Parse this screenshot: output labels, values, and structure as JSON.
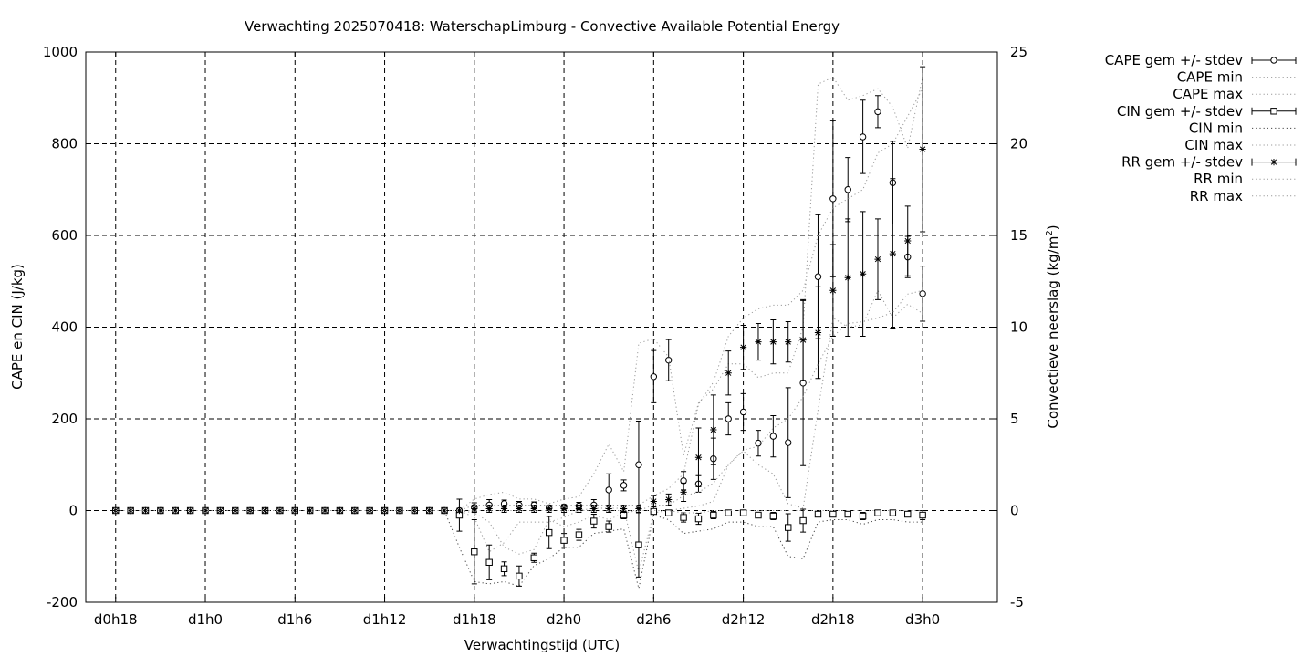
{
  "chart_data": {
    "type": "line",
    "title": "Verwachting 2025070418: WaterschapLimburg - Convective Available Potential Energy",
    "xlabel": "Verwachtingstijd (UTC)",
    "ylabel": "CAPE en CIN (J/kg)",
    "y2label_main": "Convectieve neerslag (kg/m",
    "y2label_sup": "2",
    "y2label_end": ")",
    "xlim": [
      -2,
      59
    ],
    "ylim": [
      -200,
      1000
    ],
    "y2lim": [
      -5,
      25
    ],
    "grid": true,
    "legend_position": "outside-right",
    "x_ticks": [
      {
        "x": 0,
        "label": "d0h18"
      },
      {
        "x": 6,
        "label": "d1h0"
      },
      {
        "x": 12,
        "label": "d1h6"
      },
      {
        "x": 18,
        "label": "d1h12"
      },
      {
        "x": 24,
        "label": "d1h18"
      },
      {
        "x": 30,
        "label": "d2h0"
      },
      {
        "x": 36,
        "label": "d2h6"
      },
      {
        "x": 42,
        "label": "d2h12"
      },
      {
        "x": 48,
        "label": "d2h18"
      },
      {
        "x": 54,
        "label": "d3h0"
      }
    ],
    "y_ticks": [
      "-200",
      "0",
      "200",
      "400",
      "600",
      "800",
      "1000"
    ],
    "y2_ticks": [
      "-5",
      "0",
      "5",
      "10",
      "15",
      "20",
      "25"
    ],
    "x": [
      0,
      1,
      2,
      3,
      4,
      5,
      6,
      7,
      8,
      9,
      10,
      11,
      12,
      13,
      14,
      15,
      16,
      17,
      18,
      19,
      20,
      21,
      22,
      23,
      24,
      25,
      26,
      27,
      28,
      29,
      30,
      31,
      32,
      33,
      34,
      35,
      36,
      37,
      38,
      39,
      40,
      41,
      42,
      43,
      44,
      45,
      46,
      47,
      48,
      49,
      50,
      51,
      52,
      53,
      54
    ],
    "series": [
      {
        "name": "CAPE gem +/- stdev",
        "kind": "errorbar",
        "marker": "circle",
        "axis": "y",
        "values": [
          0,
          0,
          0,
          0,
          0,
          0,
          0,
          0,
          0,
          0,
          0,
          0,
          0,
          0,
          0,
          0,
          0,
          0,
          0,
          0,
          0,
          0,
          0,
          0,
          7,
          12,
          15,
          12,
          12,
          6,
          8,
          10,
          12,
          45,
          55,
          100,
          292,
          328,
          65,
          58,
          113,
          200,
          215,
          147,
          162,
          148,
          278,
          510,
          680,
          700,
          815,
          870,
          715,
          553,
          473
        ],
        "err": [
          0,
          0,
          0,
          0,
          0,
          0,
          0,
          0,
          0,
          0,
          0,
          0,
          0,
          0,
          0,
          0,
          0,
          0,
          0,
          0,
          0,
          0,
          0,
          0,
          10,
          12,
          8,
          8,
          7,
          5,
          5,
          8,
          12,
          35,
          12,
          95,
          57,
          45,
          20,
          18,
          45,
          35,
          40,
          28,
          45,
          120,
          180,
          135,
          170,
          70,
          80,
          35,
          90,
          45,
          60
        ]
      },
      {
        "name": "CAPE min",
        "kind": "dotted",
        "axis": "y",
        "values": [
          0,
          0,
          0,
          0,
          0,
          0,
          0,
          0,
          0,
          0,
          0,
          0,
          0,
          0,
          0,
          0,
          0,
          0,
          0,
          0,
          0,
          0,
          0,
          0,
          -15,
          -90,
          -70,
          -25,
          -25,
          -25,
          -15,
          0,
          5,
          5,
          5,
          -135,
          -5,
          0,
          5,
          10,
          20,
          100,
          130,
          100,
          80,
          15,
          5,
          220,
          420,
          400,
          405,
          480,
          420,
          450,
          430
        ]
      },
      {
        "name": "CAPE max",
        "kind": "dotted",
        "axis": "y",
        "values": [
          0,
          0,
          0,
          0,
          0,
          0,
          0,
          0,
          0,
          0,
          0,
          0,
          0,
          0,
          0,
          0,
          0,
          0,
          0,
          0,
          0,
          0,
          0,
          0,
          25,
          35,
          40,
          25,
          25,
          15,
          25,
          30,
          80,
          145,
          85,
          365,
          375,
          335,
          120,
          235,
          265,
          320,
          320,
          290,
          300,
          300,
          400,
          930,
          945,
          895,
          905,
          920,
          880,
          790,
          945
        ]
      },
      {
        "name": "CIN gem +/- stdev",
        "kind": "errorbar",
        "marker": "square",
        "axis": "y",
        "values": [
          0,
          0,
          0,
          0,
          0,
          0,
          0,
          0,
          0,
          0,
          0,
          0,
          0,
          0,
          0,
          0,
          0,
          0,
          0,
          0,
          0,
          0,
          0,
          -10,
          -90,
          -113,
          -127,
          -143,
          -103,
          -48,
          -65,
          -53,
          -23,
          -35,
          -10,
          -75,
          -2,
          -5,
          -15,
          -18,
          -10,
          -5,
          -5,
          -10,
          -12,
          -37,
          -22,
          -8,
          -8,
          -8,
          -12,
          -5,
          -5,
          -8,
          -10
        ],
        "err": [
          0,
          0,
          0,
          0,
          0,
          0,
          0,
          0,
          0,
          0,
          0,
          0,
          0,
          0,
          0,
          0,
          0,
          0,
          0,
          0,
          0,
          0,
          0,
          35,
          70,
          38,
          15,
          22,
          10,
          35,
          15,
          12,
          15,
          12,
          8,
          70,
          5,
          5,
          10,
          12,
          8,
          5,
          5,
          6,
          8,
          30,
          25,
          5,
          5,
          5,
          8,
          4,
          4,
          5,
          10
        ]
      },
      {
        "name": "CIN min",
        "kind": "dotted",
        "axis": "y",
        "values": [
          0,
          0,
          0,
          0,
          0,
          0,
          0,
          0,
          0,
          0,
          0,
          0,
          0,
          0,
          0,
          0,
          0,
          0,
          0,
          0,
          0,
          0,
          0,
          -80,
          -155,
          -160,
          -155,
          -165,
          -120,
          -105,
          -80,
          -80,
          -50,
          -45,
          -40,
          -170,
          -10,
          -20,
          -50,
          -45,
          -40,
          -25,
          -25,
          -35,
          -35,
          -100,
          -105,
          -25,
          -20,
          -20,
          -30,
          -20,
          -20,
          -25,
          -25
        ]
      },
      {
        "name": "CIN max",
        "kind": "dotted",
        "axis": "y",
        "values": [
          0,
          0,
          0,
          0,
          0,
          0,
          0,
          0,
          0,
          0,
          0,
          0,
          0,
          0,
          0,
          0,
          0,
          0,
          0,
          0,
          0,
          0,
          0,
          0,
          -5,
          -25,
          -80,
          -95,
          -85,
          -20,
          -35,
          -25,
          -10,
          -20,
          -5,
          0,
          0,
          0,
          -5,
          -5,
          0,
          0,
          0,
          0,
          0,
          0,
          0,
          0,
          0,
          0,
          0,
          0,
          0,
          0,
          0
        ]
      },
      {
        "name": "RR gem +/- stdev",
        "kind": "errorbar",
        "marker": "star",
        "axis": "y2",
        "values": [
          0,
          0,
          0,
          0,
          0,
          0,
          0,
          0,
          0,
          0,
          0,
          0,
          0,
          0,
          0,
          0,
          0,
          0,
          0,
          0,
          0,
          0,
          0,
          0,
          0.1,
          0.1,
          0.1,
          0.1,
          0.1,
          0.1,
          0.1,
          0.1,
          0.1,
          0.1,
          0.1,
          0.1,
          0.5,
          0.6,
          1.0,
          2.9,
          4.4,
          7.5,
          8.9,
          9.2,
          9.2,
          9.2,
          9.3,
          9.7,
          12.0,
          12.7,
          12.9,
          13.7,
          14.0,
          14.7,
          19.7
        ],
        "err": [
          0,
          0,
          0,
          0,
          0,
          0,
          0,
          0,
          0,
          0,
          0,
          0,
          0,
          0,
          0,
          0,
          0,
          0,
          0,
          0,
          0,
          0,
          0,
          0,
          0.2,
          0.2,
          0.2,
          0.2,
          0.2,
          0.2,
          0.2,
          0.2,
          0.2,
          0.2,
          0.2,
          0.2,
          0.3,
          0.3,
          0.5,
          1.6,
          1.9,
          1.2,
          1.2,
          1.0,
          1.2,
          1.1,
          2.2,
          2.5,
          2.5,
          3.2,
          3.4,
          2.2,
          4.1,
          1.9,
          4.5
        ]
      },
      {
        "name": "RR min",
        "kind": "dotted",
        "axis": "y2",
        "values": [
          0,
          0,
          0,
          0,
          0,
          0,
          0,
          0,
          0,
          0,
          0,
          0,
          0,
          0,
          0,
          0,
          0,
          0,
          0,
          0,
          0,
          0,
          0,
          0,
          0,
          0,
          0,
          0,
          0,
          0,
          0,
          0,
          0,
          0,
          0,
          0,
          0.3,
          0.3,
          0.8,
          1.0,
          1.5,
          2.5,
          3.3,
          3.5,
          4.5,
          5.0,
          6.2,
          8.0,
          9.5,
          10.2,
          10.3,
          10.5,
          10.8,
          11.8,
          12.0
        ]
      },
      {
        "name": "RR max",
        "kind": "dotted",
        "axis": "y2",
        "values": [
          0,
          0,
          0,
          0,
          0,
          0,
          0,
          0,
          0,
          0,
          0,
          0,
          0,
          0,
          0,
          0,
          0,
          0,
          0,
          0,
          0,
          0,
          0,
          0,
          0.3,
          0.3,
          0.3,
          0.3,
          0.3,
          0.3,
          0.3,
          0.3,
          0.3,
          0.3,
          0.3,
          0.3,
          0.8,
          1.2,
          2.0,
          5.8,
          7.0,
          9.5,
          10.5,
          11.0,
          11.2,
          11.2,
          12.0,
          15.0,
          16.5,
          17.0,
          17.5,
          19.5,
          20.0,
          21.5,
          23.0
        ]
      }
    ]
  }
}
